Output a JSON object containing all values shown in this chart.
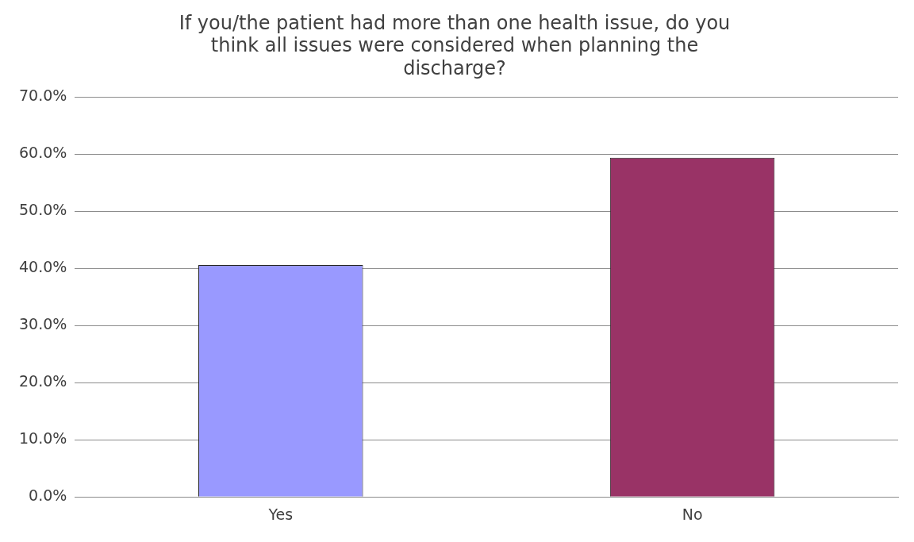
{
  "chart_data": {
    "type": "bar",
    "title": "If you/the patient had more than one health issue, do you think all issues were considered when planning the discharge?",
    "categories": [
      "Yes",
      "No"
    ],
    "values": [
      40.6,
      59.4
    ],
    "colors": [
      "#9999ff",
      "#993366"
    ],
    "ylim": [
      0,
      70
    ],
    "yticks": [
      {
        "value": 0,
        "label": "0.0%"
      },
      {
        "value": 10,
        "label": "10.0%"
      },
      {
        "value": 20,
        "label": "20.0%"
      },
      {
        "value": 30,
        "label": "30.0%"
      },
      {
        "value": 40,
        "label": "40.0%"
      },
      {
        "value": 50,
        "label": "50.0%"
      },
      {
        "value": 60,
        "label": "60.0%"
      },
      {
        "value": 70,
        "label": "70.0%"
      }
    ],
    "grid": "y",
    "legend": false
  }
}
